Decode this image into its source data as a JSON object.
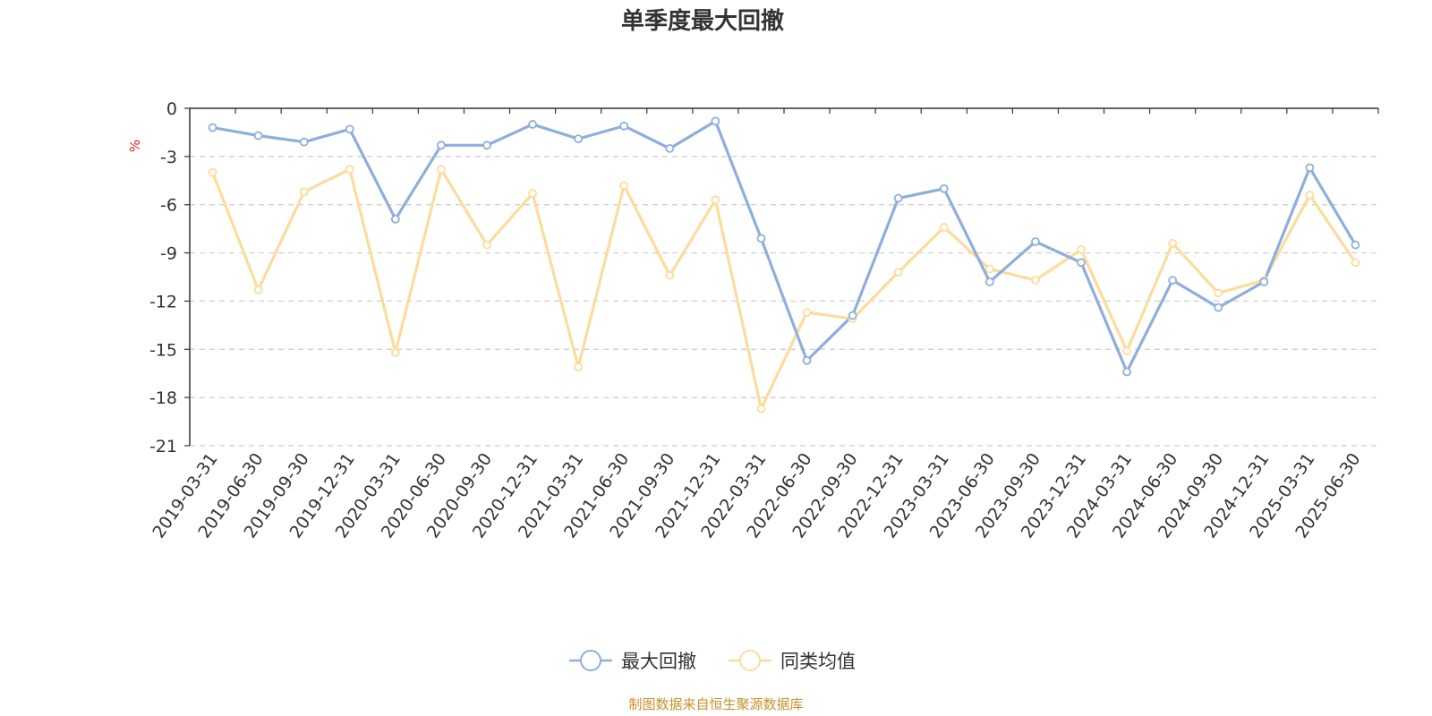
{
  "chart_data": {
    "type": "line",
    "title": "单季度最大回撤",
    "ylabel": "%",
    "ylim": [
      -21,
      0
    ],
    "yticks": [
      0,
      -3,
      -6,
      -9,
      -12,
      -15,
      -18,
      -21
    ],
    "grid": true,
    "legend_position": "bottom",
    "categories": [
      "2019-03-31",
      "2019-06-30",
      "2019-09-30",
      "2019-12-31",
      "2020-03-31",
      "2020-06-30",
      "2020-09-30",
      "2020-12-31",
      "2021-03-31",
      "2021-06-30",
      "2021-09-30",
      "2021-12-31",
      "2022-03-31",
      "2022-06-30",
      "2022-09-30",
      "2022-12-31",
      "2023-03-31",
      "2023-06-30",
      "2023-09-30",
      "2023-12-31",
      "2024-03-31",
      "2024-06-30",
      "2024-09-30",
      "2024-12-31",
      "2025-03-31",
      "2025-06-30"
    ],
    "series": [
      {
        "name": "最大回撤",
        "color": "#8eaedc",
        "values": [
          -1.2,
          -1.7,
          -2.1,
          -1.3,
          -6.9,
          -2.3,
          -2.3,
          -1.0,
          -1.9,
          -1.1,
          -2.5,
          -0.8,
          -8.1,
          -15.7,
          -12.9,
          -5.6,
          -5.0,
          -10.8,
          -8.3,
          -9.6,
          -16.4,
          -10.7,
          -12.4,
          -10.8,
          -3.7,
          -8.5
        ]
      },
      {
        "name": "同类均值",
        "color": "#fcdc9c",
        "values": [
          -4.0,
          -11.3,
          -5.2,
          -3.8,
          -15.2,
          -3.8,
          -8.5,
          -5.3,
          -16.1,
          -4.8,
          -10.4,
          -5.7,
          -18.7,
          -12.7,
          -13.1,
          -10.2,
          -7.4,
          -10.0,
          -10.7,
          -8.8,
          -15.1,
          -8.4,
          -11.5,
          -10.7,
          -5.4,
          -9.6
        ]
      }
    ],
    "source": "制图数据来自恒生聚源数据库"
  }
}
